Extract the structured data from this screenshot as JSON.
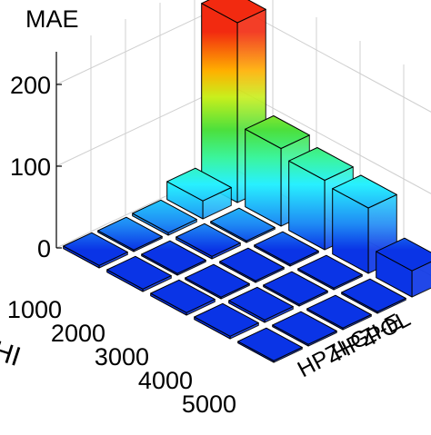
{
  "chart_data": {
    "type": "bar3d",
    "title": "MAE",
    "y_axis_label_fragment": "HI",
    "rows": [
      "1000",
      "2000",
      "3000",
      "4000",
      "5000"
    ],
    "columns": [
      "HPZI-G",
      "HPZI-E",
      "POL",
      ""
    ],
    "z_ticks": [
      "0",
      "100",
      "200"
    ],
    "z_values": [
      0,
      100,
      200
    ],
    "zlim": [
      0,
      240
    ],
    "grid": true,
    "colormap": "jet",
    "values": [
      [
        3,
        3,
        3,
        3,
        2
      ],
      [
        2,
        2,
        2,
        3,
        2
      ],
      [
        3,
        3,
        2,
        2,
        2
      ],
      [
        22,
        2,
        2,
        2,
        2
      ],
      [
        220,
        95,
        85,
        80,
        32
      ]
    ]
  }
}
